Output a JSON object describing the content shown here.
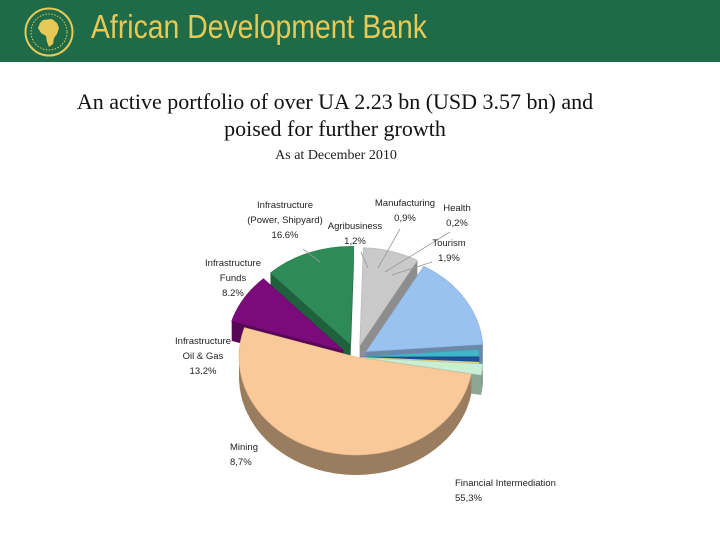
{
  "header": {
    "bank_name": "African Development Bank",
    "logo_icon": "afdb-africa-map-logo"
  },
  "headline": {
    "line1": "An active portfolio of over UA 2.23 bn (USD 3.57 bn) and",
    "line2": "poised for further growth"
  },
  "subtitle": "As at December 2010",
  "colors": {
    "banner": "#1f6b48",
    "title_gold": "#e6c957"
  },
  "chart_data": {
    "type": "pie",
    "style": "3d-exploded",
    "slices": [
      {
        "label_lines": [
          "Financial Intermediation"
        ],
        "value_text": "55,3%",
        "value": 55.3,
        "color": "#f9c99a"
      },
      {
        "label_lines": [
          "Mining"
        ],
        "value_text": "8,7%",
        "value": 8.7,
        "color": "#7b0a7b"
      },
      {
        "label_lines": [
          "Infrastructure",
          "Oil & Gas"
        ],
        "value_text": "13.2%",
        "value": 13.2,
        "color": "#2e8b57"
      },
      {
        "label_lines": [
          "Infrastructure",
          "Funds"
        ],
        "value_text": "8.2%",
        "value": 8.2,
        "color": "#c9c9c9"
      },
      {
        "label_lines": [
          "Infrastructure",
          "(Power, Shipyard)"
        ],
        "value_text": "16.6%",
        "value": 16.6,
        "color": "#99c2f0"
      },
      {
        "label_lines": [
          "Agribusiness"
        ],
        "value_text": "1,2%",
        "value": 1.2,
        "color": "#3fb7c9"
      },
      {
        "label_lines": [
          "Manufacturing"
        ],
        "value_text": "0,9%",
        "value": 0.9,
        "color": "#1f4e9a"
      },
      {
        "label_lines": [
          "Health"
        ],
        "value_text": "0,2%",
        "value": 0.2,
        "color": "#f2e27a"
      },
      {
        "label_lines": [
          "Tourism"
        ],
        "value_text": "1,9%",
        "value": 1.9,
        "color": "#c8efd3"
      }
    ]
  }
}
